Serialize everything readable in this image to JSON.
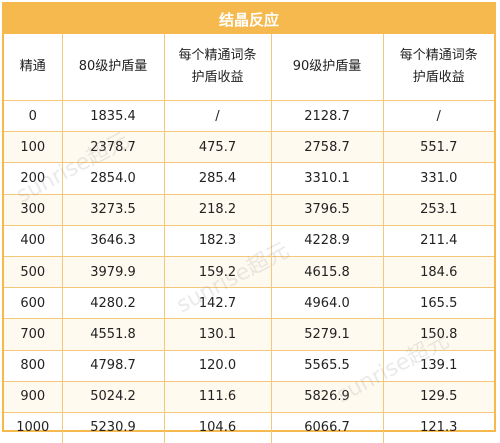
{
  "title": "结晶反应",
  "headers": [
    "精通",
    "80级护盾量",
    "每个精通词条\n护盾收益",
    "90级护盾量",
    "每个精通词条\n护盾收益"
  ],
  "rows": [
    [
      "0",
      "1835.4",
      "/",
      "2128.7",
      "/"
    ],
    [
      "100",
      "2378.7",
      "475.7",
      "2758.7",
      "551.7"
    ],
    [
      "200",
      "2854.0",
      "285.4",
      "3310.1",
      "331.0"
    ],
    [
      "300",
      "3273.5",
      "218.2",
      "3796.5",
      "253.1"
    ],
    [
      "400",
      "3646.3",
      "182.3",
      "4228.9",
      "211.4"
    ],
    [
      "500",
      "3979.9",
      "159.2",
      "4615.8",
      "184.6"
    ],
    [
      "600",
      "4280.2",
      "142.7",
      "4964.0",
      "165.5"
    ],
    [
      "700",
      "4551.8",
      "130.1",
      "5279.1",
      "150.8"
    ],
    [
      "800",
      "4798.7",
      "120.0",
      "5565.5",
      "139.1"
    ],
    [
      "900",
      "5024.2",
      "111.6",
      "5826.9",
      "129.5"
    ],
    [
      "1000",
      "5230.9",
      "104.6",
      "6066.7",
      "121.3"
    ]
  ],
  "watermarks": [
    "sunrise超元",
    "sunrise超元",
    "sunrise超元"
  ],
  "colors": {
    "accent": "#f5b94e",
    "border": "#f3c878",
    "row_tint": "#fffaf0"
  }
}
